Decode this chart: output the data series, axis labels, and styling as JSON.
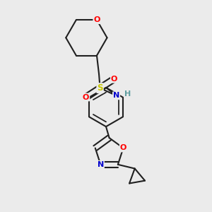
{
  "bg_color": "#ebebeb",
  "atom_colors": {
    "O": "#ff0000",
    "N": "#0000cd",
    "S": "#c8c800",
    "H": "#5f9ea0",
    "C": "#202020"
  },
  "bond_color": "#202020",
  "bond_width": 1.5,
  "figsize": [
    3.0,
    3.0
  ],
  "dpi": 100,
  "xlim": [
    0.15,
    0.85
  ],
  "ylim": [
    0.02,
    0.98
  ]
}
